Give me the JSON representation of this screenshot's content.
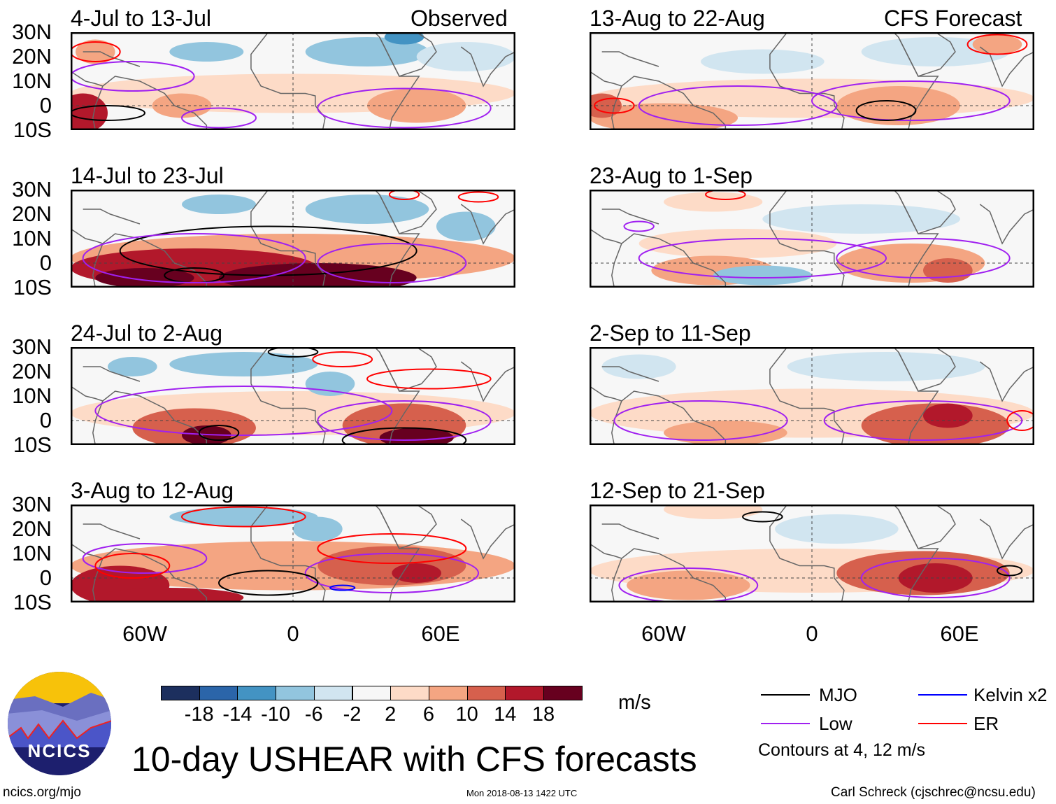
{
  "left_header": "Observed",
  "right_header": "CFS Forecast",
  "lat_labels": [
    "30N",
    "20N",
    "10N",
    "0",
    "10S"
  ],
  "lon_labels": [
    "60W",
    "0",
    "60E"
  ],
  "colors": [
    "#1c2f5e",
    "#2b65a9",
    "#4393c3",
    "#92c5de",
    "#d1e5f0",
    "#f7f7f7",
    "#fddbc7",
    "#f4a582",
    "#d6604d",
    "#b2182b",
    "#67001f"
  ],
  "contour_colors": {
    "MJO": "#000000",
    "Low": "#a020f0",
    "Kelvin": "#0000ff",
    "ER": "#ff0000"
  },
  "panels": [
    {
      "title": "4-Jul to 13-Jul",
      "blobs": [
        [
          0,
          5,
          90,
          8,
          6
        ],
        [
          30,
          22,
          25,
          6,
          3
        ],
        [
          -35,
          22,
          15,
          4,
          3
        ],
        [
          45,
          28,
          8,
          3,
          2
        ],
        [
          70,
          20,
          20,
          6,
          4
        ],
        [
          -85,
          -3,
          10,
          8,
          9
        ],
        [
          -45,
          0,
          12,
          5,
          7
        ],
        [
          50,
          0,
          20,
          7,
          7
        ],
        [
          -80,
          22,
          8,
          5,
          7
        ]
      ],
      "contours": [
        [
          "Low",
          -65,
          12,
          25,
          6
        ],
        [
          "Low",
          45,
          -1,
          35,
          8
        ],
        [
          "Low",
          -30,
          -5,
          15,
          4
        ],
        [
          "ER",
          -80,
          22,
          10,
          4
        ],
        [
          "MJO",
          -75,
          -3,
          15,
          3
        ]
      ]
    },
    {
      "title": "13-Aug to 22-Aug",
      "blobs": [
        [
          0,
          3,
          90,
          8,
          6
        ],
        [
          -20,
          18,
          25,
          5,
          4
        ],
        [
          50,
          22,
          30,
          6,
          4
        ],
        [
          35,
          0,
          25,
          8,
          7
        ],
        [
          -60,
          -5,
          30,
          6,
          7
        ],
        [
          75,
          25,
          10,
          4,
          7
        ],
        [
          -85,
          0,
          8,
          5,
          8
        ]
      ],
      "contours": [
        [
          "Low",
          -30,
          0,
          40,
          8
        ],
        [
          "Low",
          40,
          2,
          40,
          8
        ],
        [
          "ER",
          75,
          25,
          12,
          4
        ],
        [
          "ER",
          -80,
          0,
          8,
          3
        ],
        [
          "MJO",
          30,
          -2,
          12,
          4
        ]
      ]
    },
    {
      "title": "14-Jul to 23-Jul",
      "blobs": [
        [
          0,
          2,
          90,
          10,
          7
        ],
        [
          -40,
          -2,
          50,
          8,
          9
        ],
        [
          10,
          -6,
          40,
          6,
          10
        ],
        [
          -60,
          -6,
          20,
          4,
          10
        ],
        [
          30,
          22,
          25,
          6,
          3
        ],
        [
          -30,
          24,
          15,
          4,
          3
        ],
        [
          70,
          15,
          12,
          6,
          3
        ]
      ],
      "contours": [
        [
          "MJO",
          -10,
          5,
          60,
          10
        ],
        [
          "MJO",
          -40,
          -5,
          12,
          3
        ],
        [
          "Low",
          -40,
          2,
          45,
          10
        ],
        [
          "Low",
          40,
          0,
          30,
          8
        ],
        [
          "ER",
          75,
          27,
          8,
          2
        ],
        [
          "ER",
          45,
          28,
          6,
          2
        ]
      ]
    },
    {
      "title": "23-Aug to 1-Sep",
      "blobs": [
        [
          -30,
          8,
          40,
          6,
          6
        ],
        [
          -40,
          -3,
          25,
          6,
          7
        ],
        [
          40,
          0,
          30,
          8,
          7
        ],
        [
          55,
          -3,
          10,
          5,
          8
        ],
        [
          -20,
          -5,
          20,
          4,
          3
        ],
        [
          20,
          18,
          40,
          6,
          4
        ],
        [
          -40,
          25,
          20,
          4,
          6
        ]
      ],
      "contours": [
        [
          "Low",
          -20,
          2,
          50,
          8
        ],
        [
          "Low",
          45,
          2,
          35,
          8
        ],
        [
          "ER",
          -35,
          28,
          8,
          2
        ],
        [
          "Low",
          -70,
          15,
          6,
          2
        ]
      ]
    },
    {
      "title": "24-Jul to 2-Aug",
      "blobs": [
        [
          0,
          3,
          90,
          9,
          6
        ],
        [
          -40,
          -3,
          25,
          8,
          8
        ],
        [
          -35,
          -6,
          10,
          4,
          10
        ],
        [
          45,
          -2,
          25,
          9,
          8
        ],
        [
          50,
          -7,
          15,
          4,
          10
        ],
        [
          -20,
          23,
          30,
          5,
          3
        ],
        [
          -65,
          22,
          10,
          4,
          3
        ],
        [
          15,
          15,
          10,
          5,
          3
        ]
      ],
      "contours": [
        [
          "Low",
          -20,
          4,
          60,
          10
        ],
        [
          "Low",
          45,
          0,
          35,
          8
        ],
        [
          "MJO",
          45,
          -8,
          25,
          5
        ],
        [
          "MJO",
          -30,
          -5,
          8,
          3
        ],
        [
          "ER",
          20,
          25,
          12,
          3
        ],
        [
          "ER",
          55,
          17,
          25,
          4
        ],
        [
          "MJO",
          0,
          28,
          10,
          2
        ]
      ]
    },
    {
      "title": "2-Sep to 11-Sep",
      "blobs": [
        [
          0,
          3,
          90,
          10,
          6
        ],
        [
          50,
          -2,
          30,
          9,
          8
        ],
        [
          55,
          2,
          10,
          5,
          9
        ],
        [
          -35,
          -5,
          25,
          5,
          7
        ],
        [
          30,
          22,
          40,
          6,
          4
        ],
        [
          -70,
          22,
          15,
          5,
          4
        ]
      ],
      "contours": [
        [
          "Low",
          -45,
          0,
          35,
          8
        ],
        [
          "Low",
          45,
          0,
          40,
          8
        ],
        [
          "ER",
          85,
          0,
          6,
          4
        ]
      ]
    },
    {
      "title": "3-Aug to 12-Aug",
      "blobs": [
        [
          0,
          5,
          90,
          10,
          7
        ],
        [
          -70,
          -3,
          20,
          8,
          9
        ],
        [
          -50,
          -8,
          30,
          4,
          9
        ],
        [
          40,
          5,
          30,
          8,
          8
        ],
        [
          50,
          2,
          10,
          4,
          9
        ],
        [
          -20,
          25,
          30,
          4,
          3
        ],
        [
          10,
          20,
          10,
          5,
          3
        ]
      ],
      "contours": [
        [
          "Low",
          -60,
          8,
          25,
          6
        ],
        [
          "Low",
          40,
          2,
          35,
          8
        ],
        [
          "ER",
          -20,
          25,
          25,
          4
        ],
        [
          "ER",
          40,
          12,
          30,
          6
        ],
        [
          "ER",
          -65,
          5,
          15,
          5
        ],
        [
          "MJO",
          -10,
          -2,
          20,
          5
        ],
        [
          "Kelvin",
          20,
          -4,
          5,
          1
        ]
      ]
    },
    {
      "title": "12-Sep to 21-Sep",
      "blobs": [
        [
          0,
          3,
          90,
          9,
          6
        ],
        [
          45,
          2,
          35,
          9,
          8
        ],
        [
          50,
          0,
          15,
          6,
          9
        ],
        [
          -50,
          -3,
          25,
          6,
          7
        ],
        [
          10,
          20,
          25,
          6,
          4
        ],
        [
          -40,
          28,
          20,
          4,
          6
        ]
      ],
      "contours": [
        [
          "Low",
          -50,
          -3,
          28,
          7
        ],
        [
          "Low",
          50,
          0,
          30,
          8
        ],
        [
          "MJO",
          -20,
          25,
          8,
          2
        ],
        [
          "MJO",
          80,
          3,
          5,
          2
        ]
      ]
    }
  ],
  "colorbar": {
    "ticks": [
      "-18",
      "-14",
      "-10",
      "-6",
      "-2",
      "2",
      "6",
      "10",
      "14",
      "18"
    ],
    "units": "m/s"
  },
  "legend": {
    "mjo": "MJO",
    "kelvin": "Kelvin x2",
    "low": "Low",
    "er": "ER",
    "note": "Contours at 4, 12 m/s"
  },
  "logo_text": "NCICS",
  "main_title": "10-day USHEAR with CFS forecasts",
  "footer": {
    "url": "ncics.org/mjo",
    "timestamp": "Mon 2018-08-13 1422 UTC",
    "credit": "Carl Schreck (cjschrec@ncsu.edu)"
  }
}
